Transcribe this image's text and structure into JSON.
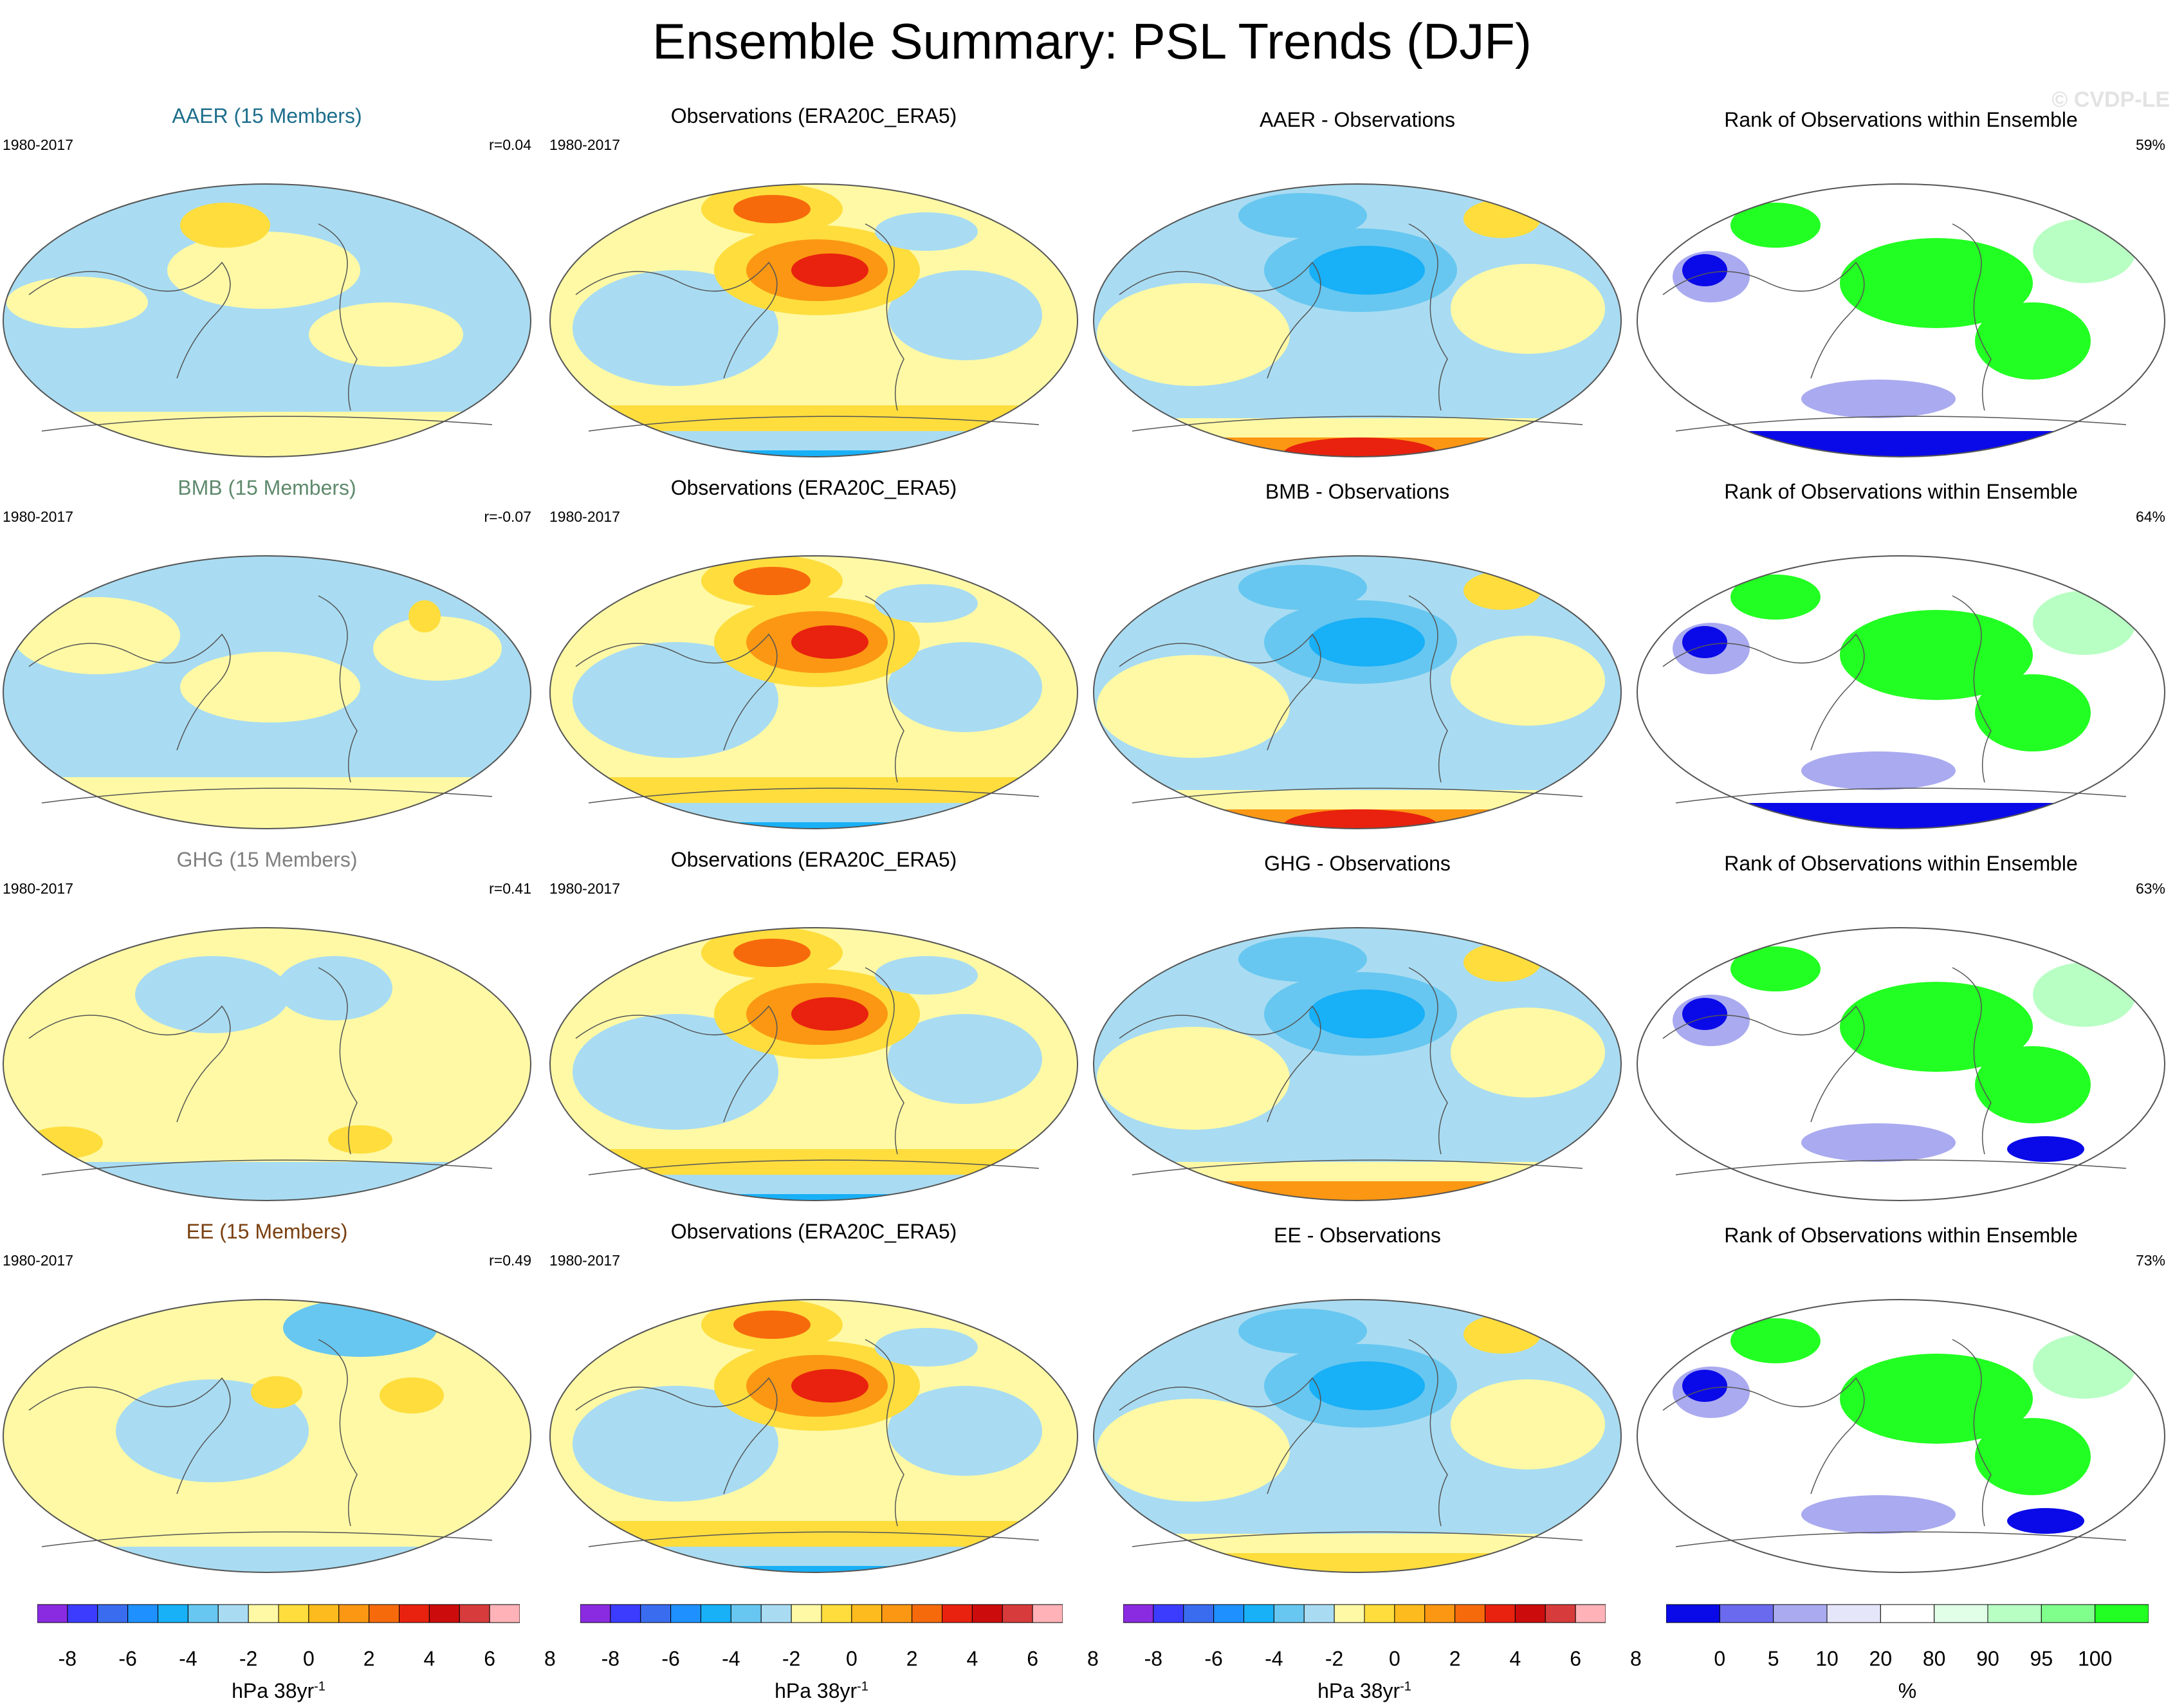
{
  "title": "Ensemble Summary: PSL Trends (DJF)",
  "watermark": "© CVDP-LE",
  "colors": {
    "trend_scale": [
      "#8a2be2",
      "#3c3cff",
      "#3a6cf0",
      "#1e90ff",
      "#18b0f7",
      "#67c7f0",
      "#a9dcf2",
      "#fff9a5",
      "#fedd3d",
      "#fdbb1d",
      "#fb9713",
      "#f66a0c",
      "#e8220e",
      "#cc0c0c",
      "#d83b3b",
      "#ffb3b8"
    ],
    "rank_scale": [
      "#0a0ae8",
      "#6a6aee",
      "#aaaaf0",
      "#e6e6fa",
      "#ffffff",
      "#e0ffe6",
      "#b8ffc3",
      "#80ff8c",
      "#22ff22"
    ],
    "aaer_title": "#1d6e8c",
    "bmb_title": "#5f8a6c",
    "ghg_title": "#808080",
    "ee_title": "#7a4010",
    "map_outline": "#555555"
  },
  "chart_data": [
    {
      "type": "heatmap",
      "row": "AAER",
      "panels": [
        {
          "title": "AAER (15 Members)",
          "period": "1980-2017",
          "stat": "r=0.04",
          "kind": "model"
        },
        {
          "title": "Observations (ERA20C_ERA5)",
          "period": "1980-2017",
          "stat": "",
          "kind": "obs"
        },
        {
          "title": "AAER - Observations",
          "period": "",
          "stat": "",
          "kind": "diff"
        },
        {
          "title": "Rank of Observations within Ensemble",
          "period": "",
          "stat": "59%",
          "kind": "rank"
        }
      ]
    },
    {
      "type": "heatmap",
      "row": "BMB",
      "panels": [
        {
          "title": "BMB (15 Members)",
          "period": "1980-2017",
          "stat": "r=-0.07",
          "kind": "model"
        },
        {
          "title": "Observations (ERA20C_ERA5)",
          "period": "1980-2017",
          "stat": "",
          "kind": "obs"
        },
        {
          "title": "BMB - Observations",
          "period": "",
          "stat": "",
          "kind": "diff"
        },
        {
          "title": "Rank of Observations within Ensemble",
          "period": "",
          "stat": "64%",
          "kind": "rank"
        }
      ]
    },
    {
      "type": "heatmap",
      "row": "GHG",
      "panels": [
        {
          "title": "GHG (15 Members)",
          "period": "1980-2017",
          "stat": "r=0.41",
          "kind": "model"
        },
        {
          "title": "Observations (ERA20C_ERA5)",
          "period": "1980-2017",
          "stat": "",
          "kind": "obs"
        },
        {
          "title": "GHG - Observations",
          "period": "",
          "stat": "",
          "kind": "diff"
        },
        {
          "title": "Rank of Observations within Ensemble",
          "period": "",
          "stat": "63%",
          "kind": "rank"
        }
      ]
    },
    {
      "type": "heatmap",
      "row": "EE",
      "panels": [
        {
          "title": "EE (15 Members)",
          "period": "1980-2017",
          "stat": "r=0.49",
          "kind": "model"
        },
        {
          "title": "Observations (ERA20C_ERA5)",
          "period": "1980-2017",
          "stat": "",
          "kind": "obs"
        },
        {
          "title": "EE - Observations",
          "period": "",
          "stat": "",
          "kind": "diff"
        },
        {
          "title": "Rank of Observations within Ensemble",
          "period": "",
          "stat": "73%",
          "kind": "rank"
        }
      ]
    }
  ],
  "legends": {
    "trend": {
      "ticks": [
        "-8",
        "-6",
        "-4",
        "-2",
        "0",
        "2",
        "4",
        "6",
        "8"
      ],
      "label": "hPa 38yr",
      "label_sup": "-1"
    },
    "rank": {
      "ticks": [
        "0",
        "5",
        "10",
        "20",
        "80",
        "90",
        "95",
        "100"
      ],
      "label": "%"
    }
  }
}
